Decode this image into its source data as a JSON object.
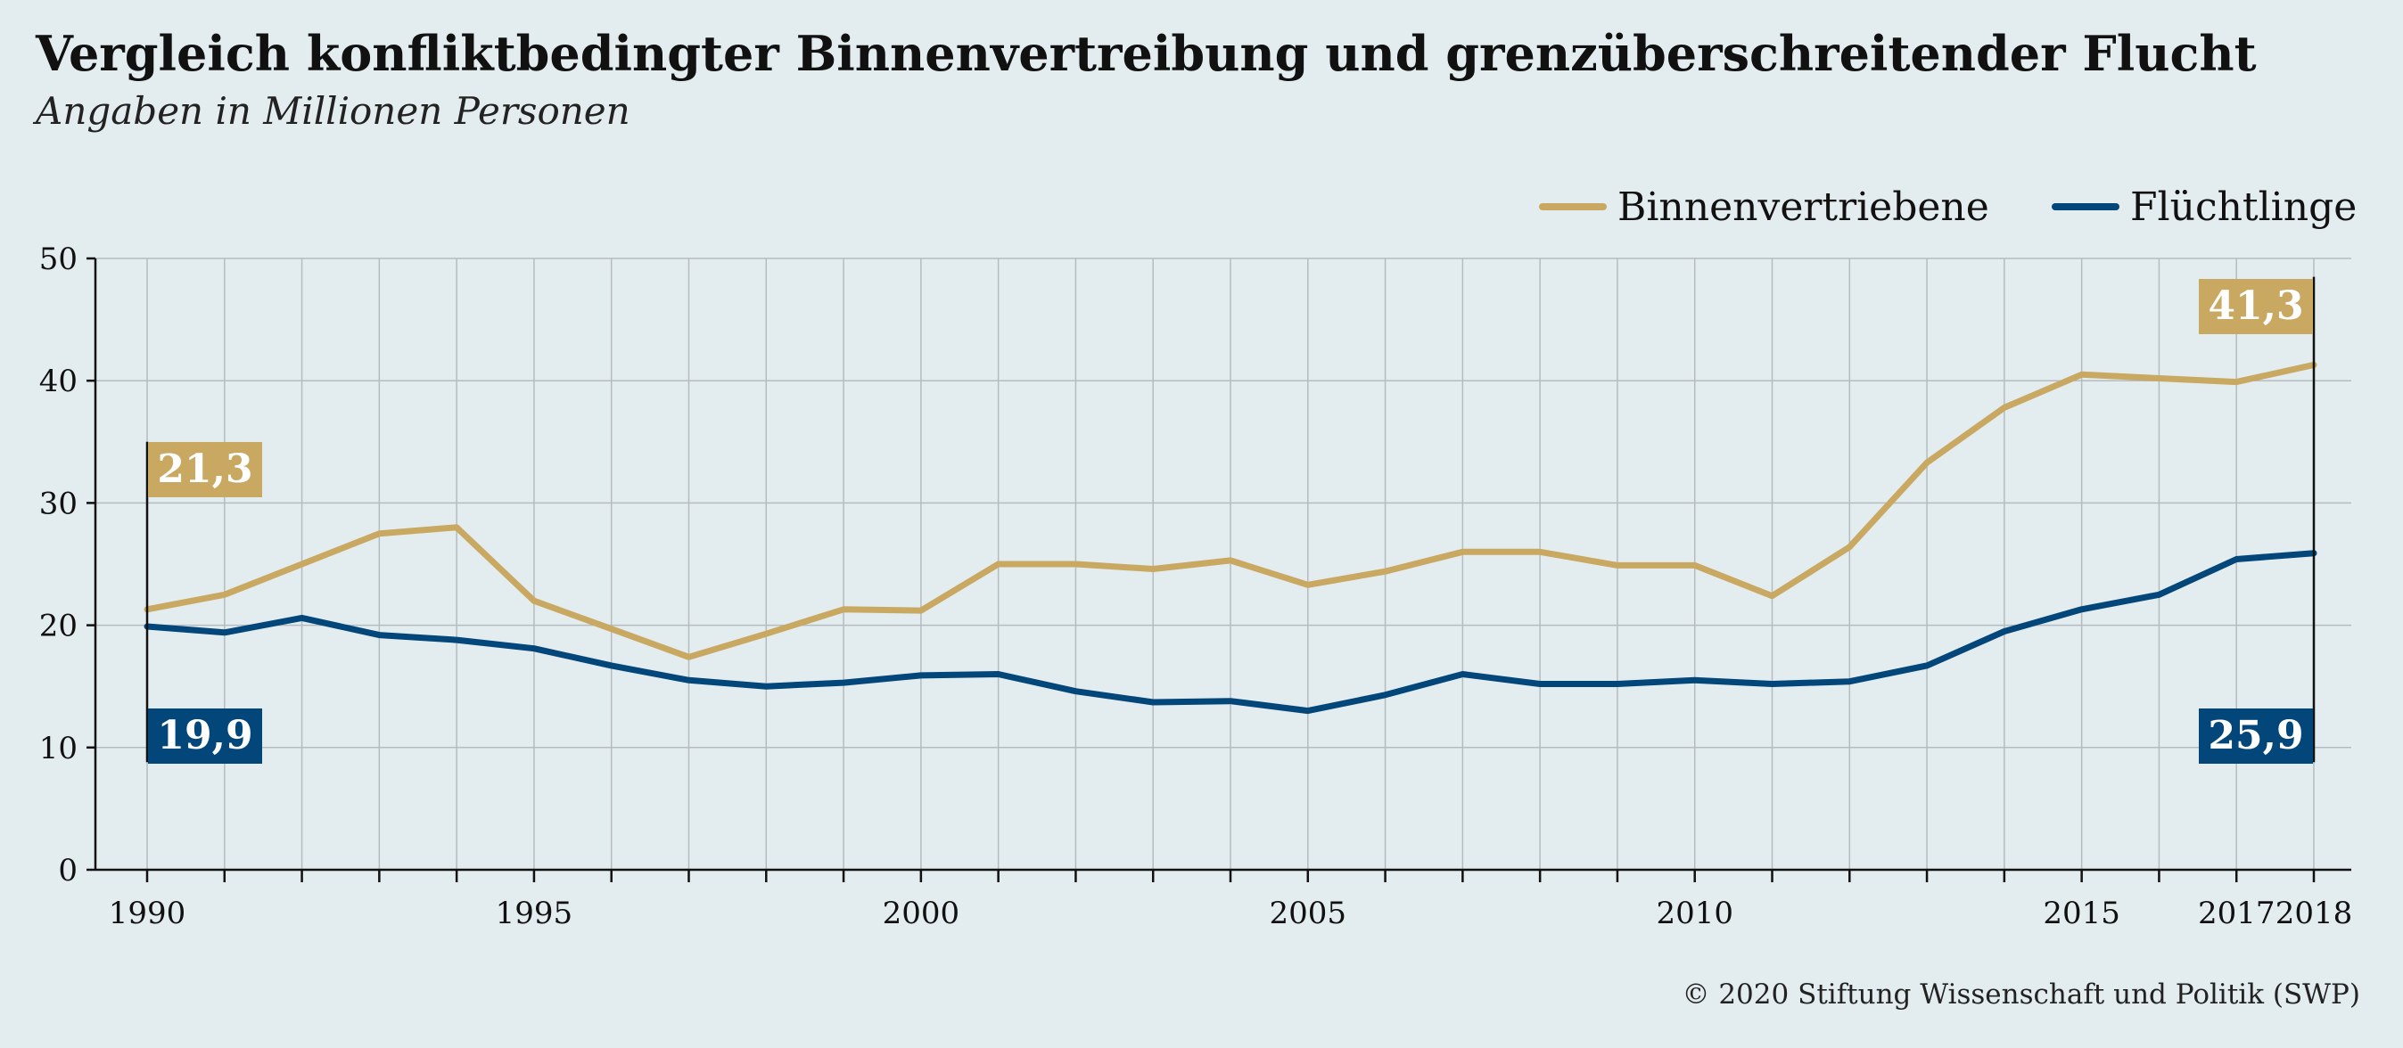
{
  "header": {
    "title": "Vergleich konfliktbedingter Binnenvertreibung und grenzüberschreitender Flucht",
    "subtitle": "Angaben in Millionen Personen"
  },
  "footer": {
    "credit": "© 2020 Stiftung Wissenschaft und Politik (SWP)"
  },
  "chart_data": {
    "type": "line",
    "title": "Vergleich konfliktbedingter Binnenvertreibung und grenzüberschreitender Flucht",
    "subtitle": "Angaben in Millionen Personen",
    "xlabel": "",
    "ylabel": "",
    "x": [
      1990,
      1991,
      1992,
      1993,
      1994,
      1995,
      1996,
      1997,
      1998,
      1999,
      2000,
      2001,
      2002,
      2003,
      2004,
      2005,
      2006,
      2007,
      2008,
      2009,
      2010,
      2011,
      2012,
      2013,
      2014,
      2015,
      2016,
      2017,
      2018
    ],
    "x_tick_labels": [
      "1990",
      "1995",
      "2000",
      "2005",
      "2010",
      "2015",
      "2017",
      "2018"
    ],
    "y_ticks": [
      "0",
      "10",
      "20",
      "30",
      "40",
      "50"
    ],
    "ylim": [
      0,
      50
    ],
    "xlim": [
      1990,
      2018
    ],
    "grid": true,
    "legend_position": "top-right",
    "series": [
      {
        "name": "Binnenvertriebene",
        "color": "#c9a862",
        "values": [
          21.3,
          22.5,
          25.0,
          27.5,
          28.0,
          22.0,
          19.7,
          17.4,
          19.3,
          21.3,
          21.2,
          25.0,
          25.0,
          24.6,
          25.3,
          23.3,
          24.4,
          26.0,
          26.0,
          24.9,
          24.9,
          22.4,
          26.4,
          33.3,
          37.8,
          40.5,
          40.2,
          39.9,
          41.3
        ]
      },
      {
        "name": "Flüchtlinge",
        "color": "#02467a",
        "values": [
          19.9,
          19.4,
          20.6,
          19.2,
          18.8,
          18.1,
          16.7,
          15.5,
          15.0,
          15.3,
          15.9,
          16.0,
          14.6,
          13.7,
          13.8,
          13.0,
          14.3,
          16.0,
          15.2,
          15.2,
          15.5,
          15.2,
          15.4,
          16.7,
          19.5,
          21.3,
          22.5,
          25.4,
          25.9
        ]
      }
    ],
    "annotations": [
      {
        "label": "21,3",
        "series": "Binnenvertriebene",
        "year": 1990,
        "value": 21.3
      },
      {
        "label": "19,9",
        "series": "Flüchtlinge",
        "year": 1990,
        "value": 19.9
      },
      {
        "label": "41,3",
        "series": "Binnenvertriebene",
        "year": 2018,
        "value": 41.3
      },
      {
        "label": "25,9",
        "series": "Flüchtlinge",
        "year": 2018,
        "value": 25.9
      }
    ]
  }
}
